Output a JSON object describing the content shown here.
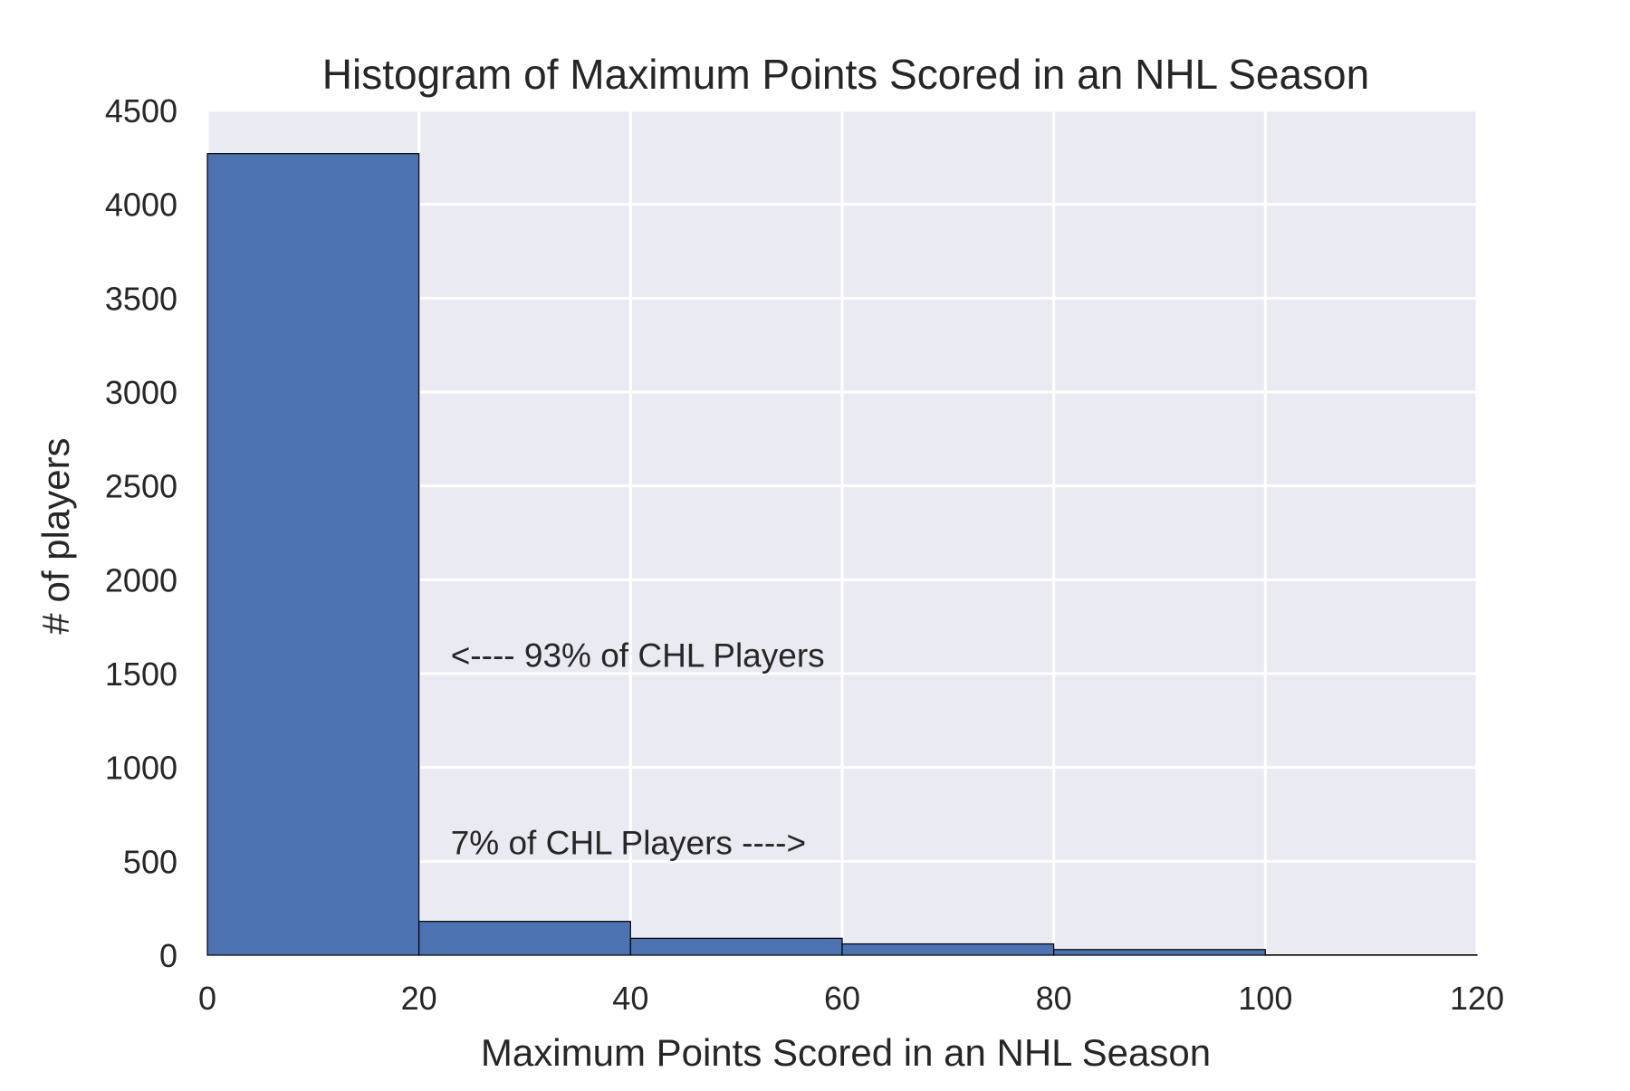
{
  "chart_data": {
    "type": "bar",
    "subtype": "histogram",
    "title": "Histogram of Maximum Points Scored in an NHL Season",
    "xlabel": "Maximum Points Scored in an NHL Season",
    "ylabel": "# of players",
    "xlim": [
      0,
      120
    ],
    "ylim": [
      0,
      4500
    ],
    "xticks": [
      "0",
      "20",
      "40",
      "60",
      "80",
      "100",
      "120"
    ],
    "yticks": [
      "0",
      "500",
      "1000",
      "1500",
      "2000",
      "2500",
      "3000",
      "3500",
      "4000",
      "4500"
    ],
    "grid": true,
    "legend": "none",
    "bins": [
      {
        "start": 0,
        "end": 20,
        "value": 4270
      },
      {
        "start": 20,
        "end": 40,
        "value": 180
      },
      {
        "start": 40,
        "end": 60,
        "value": 90
      },
      {
        "start": 60,
        "end": 80,
        "value": 60
      },
      {
        "start": 80,
        "end": 100,
        "value": 30
      },
      {
        "start": 100,
        "end": 120,
        "value": 2
      }
    ],
    "annotations": [
      {
        "text": "<---- 93% of CHL Players",
        "x": 23,
        "y": 1600
      },
      {
        "text": "7% of CHL Players ---->",
        "x": 23,
        "y": 600
      }
    ],
    "colors": {
      "bar": "#4c72b0",
      "plot_background": "#eaeaf2",
      "grid": "#ffffff"
    }
  }
}
